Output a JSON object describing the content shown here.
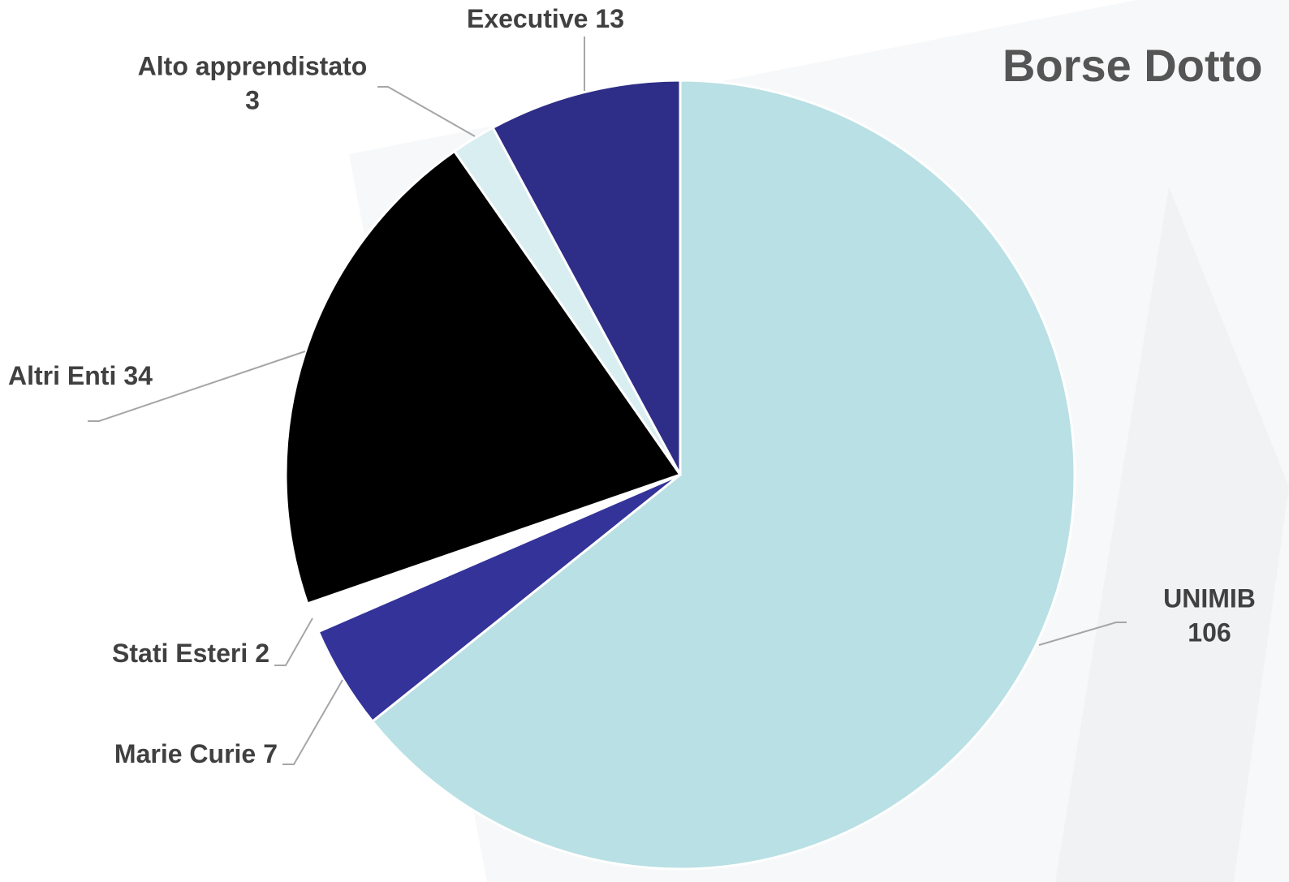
{
  "chart_data": {
    "type": "pie",
    "title": "Borse Dotto",
    "categories": [
      "UNIMIB",
      "Marie Curie",
      "Stati Esteri",
      "Altri Enti",
      "Alto apprendistato",
      "Executive"
    ],
    "values": [
      106,
      7,
      2,
      34,
      3,
      13
    ],
    "colors": [
      "#b9e0e4",
      "#333399",
      "#ffffff",
      "#000000",
      "#d9eef0",
      "#2e2d87"
    ]
  }
}
